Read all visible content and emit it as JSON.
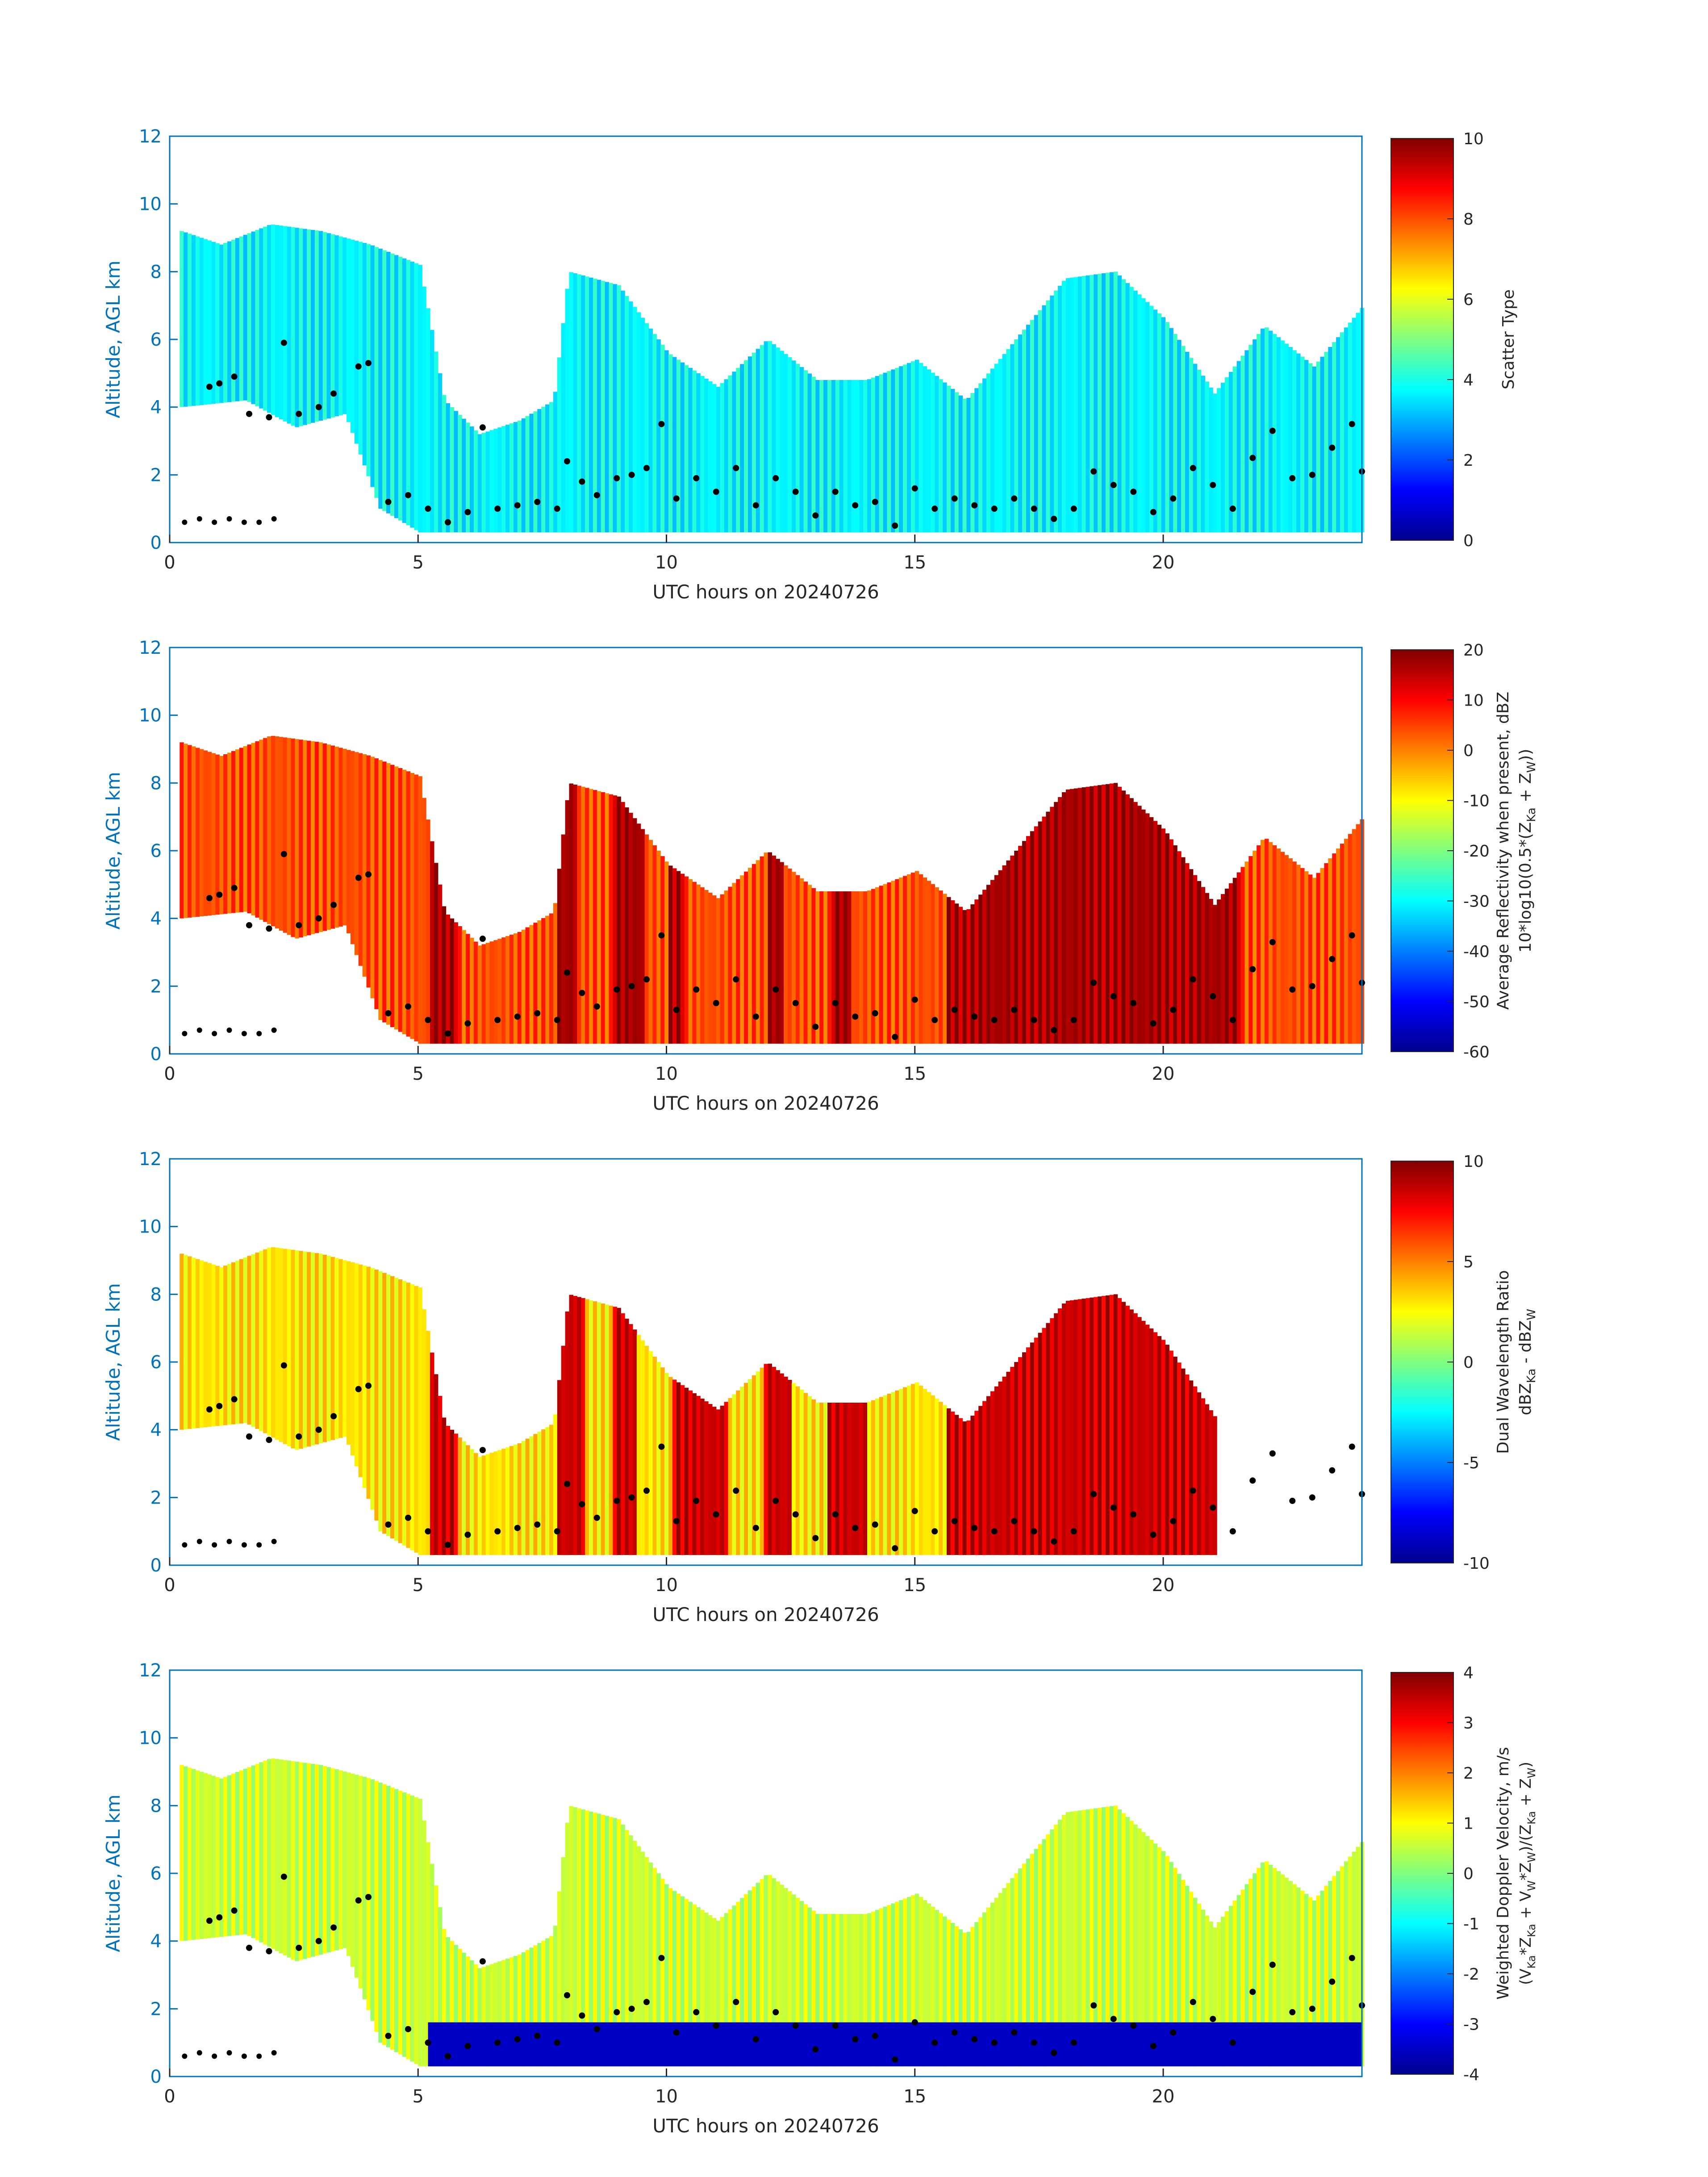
{
  "colors": {
    "axis": "#0072BD",
    "text": "#262626",
    "marker": "#000000",
    "jet": [
      "#00008F",
      "#0000FF",
      "#00FFFF",
      "#FFFF00",
      "#FF0000",
      "#800000"
    ]
  },
  "chart_data": [
    {
      "type": "heatmap",
      "title": "",
      "xlabel": "UTC hours on 20240726",
      "ylabel": "Altitude, AGL km",
      "xlim": [
        0,
        24
      ],
      "ylim": [
        0,
        12
      ],
      "xticks": [
        0,
        5,
        10,
        15,
        20
      ],
      "yticks": [
        0,
        2,
        4,
        6,
        8,
        10,
        12
      ],
      "colorbar": {
        "label_lines": [
          "Scatter Type"
        ],
        "clim": [
          0,
          10
        ],
        "ticks": [
          0,
          2,
          4,
          6,
          8,
          10
        ]
      },
      "fill_value": 3.7,
      "cloud_top_km": [
        [
          0.2,
          9.2
        ],
        [
          1.0,
          8.8
        ],
        [
          2.0,
          9.4
        ],
        [
          3.0,
          9.2
        ],
        [
          4.0,
          8.8
        ],
        [
          5.0,
          8.2
        ],
        [
          5.5,
          4.2
        ],
        [
          6.2,
          3.2
        ],
        [
          7.0,
          3.6
        ],
        [
          7.7,
          4.2
        ],
        [
          8.0,
          8.0
        ],
        [
          9.0,
          7.6
        ],
        [
          10.0,
          5.6
        ],
        [
          11.0,
          4.6
        ],
        [
          12.0,
          6.0
        ],
        [
          13.0,
          4.8
        ],
        [
          14.0,
          4.8
        ],
        [
          15.0,
          5.4
        ],
        [
          16.0,
          4.2
        ],
        [
          17.0,
          6.0
        ],
        [
          18.0,
          7.8
        ],
        [
          19.0,
          8.0
        ],
        [
          20.0,
          6.6
        ],
        [
          21.0,
          4.4
        ],
        [
          22.0,
          6.4
        ],
        [
          23.0,
          5.2
        ],
        [
          24.0,
          7.0
        ]
      ],
      "cloud_base_km": [
        [
          0.2,
          4.0
        ],
        [
          1.5,
          4.2
        ],
        [
          2.5,
          3.4
        ],
        [
          3.5,
          3.8
        ],
        [
          4.2,
          1.0
        ],
        [
          5.0,
          0.3
        ],
        [
          24.0,
          0.3
        ]
      ]
    },
    {
      "type": "heatmap",
      "title": "",
      "xlabel": "UTC hours on 20240726",
      "ylabel": "Altitude, AGL km",
      "xlim": [
        0,
        24
      ],
      "ylim": [
        0,
        12
      ],
      "xticks": [
        0,
        5,
        10,
        15,
        20
      ],
      "yticks": [
        0,
        2,
        4,
        6,
        8,
        10,
        12
      ],
      "colorbar": {
        "label_lines": [
          "Average Reflectivity when present, dBZ",
          "10*log10(0.5*(Z_Ka + Z_W))"
        ],
        "clim": [
          -60,
          20
        ],
        "ticks": [
          -60,
          -50,
          -40,
          -30,
          -20,
          -10,
          0,
          10,
          20
        ]
      },
      "fill_value": 4,
      "cloud_top_km": [
        [
          0.2,
          9.2
        ],
        [
          1.0,
          8.8
        ],
        [
          2.0,
          9.4
        ],
        [
          3.0,
          9.2
        ],
        [
          4.0,
          8.8
        ],
        [
          5.0,
          8.2
        ],
        [
          5.5,
          4.2
        ],
        [
          6.2,
          3.2
        ],
        [
          7.0,
          3.6
        ],
        [
          7.7,
          4.2
        ],
        [
          8.0,
          8.0
        ],
        [
          9.0,
          7.6
        ],
        [
          10.0,
          5.6
        ],
        [
          11.0,
          4.6
        ],
        [
          12.0,
          6.0
        ],
        [
          13.0,
          4.8
        ],
        [
          14.0,
          4.8
        ],
        [
          15.0,
          5.4
        ],
        [
          16.0,
          4.2
        ],
        [
          17.0,
          6.0
        ],
        [
          18.0,
          7.8
        ],
        [
          19.0,
          8.0
        ],
        [
          20.0,
          6.6
        ],
        [
          21.0,
          4.4
        ],
        [
          22.0,
          6.4
        ],
        [
          23.0,
          5.2
        ],
        [
          24.0,
          7.0
        ]
      ],
      "cloud_base_km": [
        [
          0.2,
          4.0
        ],
        [
          1.5,
          4.2
        ],
        [
          2.5,
          3.4
        ],
        [
          3.5,
          3.8
        ],
        [
          4.2,
          1.0
        ],
        [
          5.0,
          0.3
        ],
        [
          24.0,
          0.3
        ]
      ],
      "rain_shafts": [
        [
          5.2,
          5.8,
          4.5
        ],
        [
          7.8,
          8.2,
          7.8
        ],
        [
          8.9,
          9.5,
          7.6
        ],
        [
          10.0,
          10.3,
          5.6
        ],
        [
          12.0,
          12.3,
          5.5
        ],
        [
          13.3,
          13.7,
          6.4
        ],
        [
          15.6,
          21.5,
          3.6
        ]
      ]
    },
    {
      "type": "heatmap",
      "title": "",
      "xlabel": "UTC hours on 20240726",
      "ylabel": "Altitude, AGL km",
      "xlim": [
        0,
        24
      ],
      "ylim": [
        0,
        12
      ],
      "xticks": [
        0,
        5,
        10,
        15,
        20
      ],
      "yticks": [
        0,
        2,
        4,
        6,
        8,
        10,
        12
      ],
      "colorbar": {
        "label_lines": [
          "Dual Wavelength Ratio",
          "dBZ_Ka - dBZ_W"
        ],
        "clim": [
          -10,
          10
        ],
        "ticks": [
          -10,
          -5,
          0,
          5,
          10
        ]
      },
      "fill_value": 3,
      "data_end_hour": 21,
      "cloud_top_km": [
        [
          0.2,
          9.2
        ],
        [
          1.0,
          8.8
        ],
        [
          2.0,
          9.4
        ],
        [
          3.0,
          9.2
        ],
        [
          4.0,
          8.8
        ],
        [
          5.0,
          8.2
        ],
        [
          5.5,
          4.2
        ],
        [
          6.2,
          3.2
        ],
        [
          7.0,
          3.6
        ],
        [
          7.7,
          4.2
        ],
        [
          8.0,
          8.0
        ],
        [
          9.0,
          7.6
        ],
        [
          10.0,
          5.6
        ],
        [
          11.0,
          4.6
        ],
        [
          12.0,
          6.0
        ],
        [
          13.0,
          4.8
        ],
        [
          14.0,
          4.8
        ],
        [
          15.0,
          5.4
        ],
        [
          16.0,
          4.2
        ],
        [
          17.0,
          6.0
        ],
        [
          18.0,
          7.8
        ],
        [
          19.0,
          8.0
        ],
        [
          20.0,
          6.6
        ],
        [
          21.0,
          4.4
        ]
      ],
      "cloud_base_km": [
        [
          0.2,
          4.0
        ],
        [
          1.5,
          4.2
        ],
        [
          2.5,
          3.4
        ],
        [
          3.5,
          3.8
        ],
        [
          4.2,
          1.0
        ],
        [
          5.0,
          0.3
        ],
        [
          21.0,
          0.3
        ]
      ],
      "rain_shafts": [
        [
          5.2,
          5.8,
          4.5
        ],
        [
          7.8,
          8.3,
          7.8
        ],
        [
          8.9,
          9.4,
          7.6
        ],
        [
          10.1,
          11.2,
          4.8
        ],
        [
          11.9,
          12.5,
          5.8
        ],
        [
          13.2,
          14.0,
          6.4
        ],
        [
          15.6,
          21.0,
          3.6
        ]
      ]
    },
    {
      "type": "heatmap",
      "title": "",
      "xlabel": "UTC hours on 20240726",
      "ylabel": "Altitude, AGL km",
      "xlim": [
        0,
        24
      ],
      "ylim": [
        0,
        12
      ],
      "xticks": [
        0,
        5,
        10,
        15,
        20
      ],
      "yticks": [
        0,
        2,
        4,
        6,
        8,
        10,
        12
      ],
      "colorbar": {
        "label_lines": [
          "Weighted Doppler Velocity, m/s",
          "(V_Ka*Z_Ka + V_W*Z_W)/(Z_Ka + Z_W)"
        ],
        "clim": [
          -4,
          4
        ],
        "ticks": [
          -4,
          -3,
          -2,
          -1,
          0,
          1,
          2,
          3,
          4
        ]
      },
      "fill_value": 0.6,
      "cloud_top_km": [
        [
          0.2,
          9.2
        ],
        [
          1.0,
          8.8
        ],
        [
          2.0,
          9.4
        ],
        [
          3.0,
          9.2
        ],
        [
          4.0,
          8.8
        ],
        [
          5.0,
          8.2
        ],
        [
          5.5,
          4.2
        ],
        [
          6.2,
          3.2
        ],
        [
          7.0,
          3.6
        ],
        [
          7.7,
          4.2
        ],
        [
          8.0,
          8.0
        ],
        [
          9.0,
          7.6
        ],
        [
          10.0,
          5.6
        ],
        [
          11.0,
          4.6
        ],
        [
          12.0,
          6.0
        ],
        [
          13.0,
          4.8
        ],
        [
          14.0,
          4.8
        ],
        [
          15.0,
          5.4
        ],
        [
          16.0,
          4.2
        ],
        [
          17.0,
          6.0
        ],
        [
          18.0,
          7.8
        ],
        [
          19.0,
          8.0
        ],
        [
          20.0,
          6.6
        ],
        [
          21.0,
          4.4
        ],
        [
          22.0,
          6.4
        ],
        [
          23.0,
          5.2
        ],
        [
          24.0,
          7.0
        ]
      ],
      "cloud_base_km": [
        [
          0.2,
          4.0
        ],
        [
          1.5,
          4.2
        ],
        [
          2.5,
          3.4
        ],
        [
          3.5,
          3.8
        ],
        [
          4.2,
          1.0
        ],
        [
          5.0,
          0.3
        ],
        [
          24.0,
          0.3
        ]
      ],
      "rain_band": [
        5.2,
        24.0,
        1.6
      ]
    }
  ],
  "marker_series": [
    [
      0.8,
      4.6
    ],
    [
      1.0,
      4.7
    ],
    [
      1.3,
      4.9
    ],
    [
      1.6,
      3.8
    ],
    [
      2.0,
      3.7
    ],
    [
      2.3,
      5.9
    ],
    [
      2.6,
      3.8
    ],
    [
      3.0,
      4.0
    ],
    [
      3.3,
      4.4
    ],
    [
      3.8,
      5.2
    ],
    [
      4.0,
      5.3
    ],
    [
      4.4,
      1.2
    ],
    [
      4.8,
      1.4
    ],
    [
      5.2,
      1.0
    ],
    [
      5.6,
      0.6
    ],
    [
      6.0,
      0.9
    ],
    [
      6.3,
      3.4
    ],
    [
      6.6,
      1.0
    ],
    [
      7.0,
      1.1
    ],
    [
      7.4,
      1.2
    ],
    [
      7.8,
      1.0
    ],
    [
      8.0,
      2.4
    ],
    [
      8.3,
      1.8
    ],
    [
      8.6,
      1.4
    ],
    [
      9.0,
      1.9
    ],
    [
      9.3,
      2.0
    ],
    [
      9.6,
      2.2
    ],
    [
      9.9,
      3.5
    ],
    [
      10.2,
      1.3
    ],
    [
      10.6,
      1.9
    ],
    [
      11.0,
      1.5
    ],
    [
      11.4,
      2.2
    ],
    [
      11.8,
      1.1
    ],
    [
      12.2,
      1.9
    ],
    [
      12.6,
      1.5
    ],
    [
      13.0,
      0.8
    ],
    [
      13.4,
      1.5
    ],
    [
      13.8,
      1.1
    ],
    [
      14.2,
      1.2
    ],
    [
      14.6,
      0.5
    ],
    [
      15.0,
      1.6
    ],
    [
      15.4,
      1.0
    ],
    [
      15.8,
      1.3
    ],
    [
      16.2,
      1.1
    ],
    [
      16.6,
      1.0
    ],
    [
      17.0,
      1.3
    ],
    [
      17.4,
      1.0
    ],
    [
      17.8,
      0.7
    ],
    [
      18.2,
      1.0
    ],
    [
      18.6,
      2.1
    ],
    [
      19.0,
      1.7
    ],
    [
      19.4,
      1.5
    ],
    [
      19.8,
      0.9
    ],
    [
      20.2,
      1.3
    ],
    [
      20.6,
      2.2
    ],
    [
      21.0,
      1.7
    ],
    [
      21.4,
      1.0
    ],
    [
      21.8,
      2.5
    ],
    [
      22.2,
      3.3
    ],
    [
      22.6,
      1.9
    ],
    [
      23.0,
      2.0
    ],
    [
      23.4,
      2.8
    ],
    [
      23.8,
      3.5
    ],
    [
      24.0,
      2.1
    ]
  ],
  "surface_layer": [
    [
      0.3,
      0.6
    ],
    [
      0.6,
      0.7
    ],
    [
      0.9,
      0.6
    ],
    [
      1.2,
      0.7
    ],
    [
      1.5,
      0.6
    ],
    [
      1.8,
      0.6
    ],
    [
      2.1,
      0.7
    ]
  ],
  "axis_text": {
    "p0": {
      "xlabel": "UTC hours on 20240726",
      "ylabel": "Altitude, AGL km",
      "xt": [
        "0",
        "5",
        "10",
        "15",
        "20"
      ],
      "yt": [
        "0",
        "2",
        "4",
        "6",
        "8",
        "10",
        "12"
      ],
      "cb": [
        "0",
        "2",
        "4",
        "6",
        "8",
        "10"
      ]
    },
    "p1": {
      "xlabel": "UTC hours on 20240726",
      "ylabel": "Altitude, AGL km",
      "xt": [
        "0",
        "5",
        "10",
        "15",
        "20"
      ],
      "yt": [
        "0",
        "2",
        "4",
        "6",
        "8",
        "10",
        "12"
      ],
      "cb": [
        "-60",
        "-50",
        "-40",
        "-30",
        "-20",
        "-10",
        "0",
        "10",
        "20"
      ]
    },
    "p2": {
      "xlabel": "UTC hours on 20240726",
      "ylabel": "Altitude, AGL km",
      "xt": [
        "0",
        "5",
        "10",
        "15",
        "20"
      ],
      "yt": [
        "0",
        "2",
        "4",
        "6",
        "8",
        "10",
        "12"
      ],
      "cb": [
        "-10",
        "-5",
        "0",
        "5",
        "10"
      ]
    },
    "p3": {
      "xlabel": "UTC hours on 20240726",
      "ylabel": "Altitude, AGL km",
      "xt": [
        "0",
        "5",
        "10",
        "15",
        "20"
      ],
      "yt": [
        "0",
        "2",
        "4",
        "6",
        "8",
        "10",
        "12"
      ],
      "cb": [
        "-4",
        "-3",
        "-2",
        "-1",
        "0",
        "1",
        "2",
        "3",
        "4"
      ]
    }
  },
  "cb_labels": {
    "p0": {
      "l1": "Scatter Type"
    },
    "p1": {
      "l1": "Average Reflectivity when present, dBZ",
      "l2a": "10*log10(0.5*(Z",
      "s1": "Ka",
      "l2b": " + Z",
      "s2": "W",
      "l2c": "))"
    },
    "p2": {
      "l1": "Dual Wavelength Ratio",
      "l2a": "dBZ",
      "s1": "Ka",
      "l2b": " - dBZ",
      "s2": "W"
    },
    "p3": {
      "l1": "Weighted Doppler Velocity, m/s",
      "l2a": "(V",
      "s1": "Ka",
      "l2b": "*Z",
      "s2": "Ka",
      "l2c": " + V",
      "s3": "W",
      "l2d": "*Z",
      "s4": "W",
      "l2e": ")/(Z",
      "s5": "Ka",
      "l2f": " + Z",
      "s6": "W",
      "l2g": ")"
    }
  }
}
